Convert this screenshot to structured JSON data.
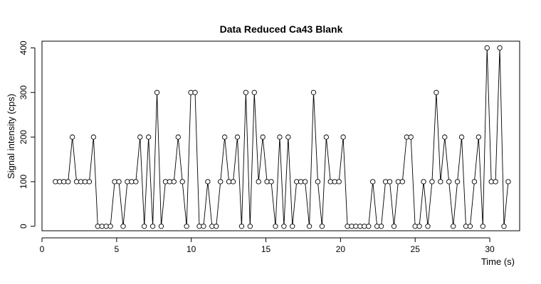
{
  "chart_data": {
    "type": "line",
    "title": "Data Reduced Ca43 Blank",
    "xlabel": "Time (s)",
    "ylabel": "Signal intensity (cps)",
    "xlim": [
      0,
      32
    ],
    "ylim": [
      -10,
      415
    ],
    "x_ticks": [
      0,
      5,
      10,
      15,
      20,
      25,
      30
    ],
    "y_ticks": [
      0,
      100,
      200,
      300,
      400
    ],
    "grid": false,
    "markers": "open-circle",
    "x_start": 0.9,
    "x_step": 0.2835,
    "values": [
      100,
      100,
      100,
      100,
      200,
      100,
      100,
      100,
      100,
      200,
      0,
      0,
      0,
      0,
      100,
      100,
      0,
      100,
      100,
      100,
      200,
      0,
      200,
      0,
      300,
      0,
      100,
      100,
      100,
      200,
      100,
      0,
      300,
      300,
      0,
      0,
      100,
      0,
      0,
      100,
      200,
      100,
      100,
      200,
      0,
      300,
      0,
      300,
      100,
      200,
      100,
      100,
      0,
      200,
      0,
      200,
      0,
      100,
      100,
      100,
      0,
      300,
      100,
      0,
      200,
      100,
      100,
      100,
      200,
      0,
      0,
      0,
      0,
      0,
      0,
      100,
      0,
      0,
      100,
      100,
      0,
      100,
      100,
      200,
      200,
      0,
      0,
      100,
      0,
      100,
      300,
      100,
      200,
      100,
      0,
      100,
      200,
      0,
      0,
      100,
      200,
      0,
      400,
      100,
      100,
      400,
      0,
      100
    ]
  }
}
